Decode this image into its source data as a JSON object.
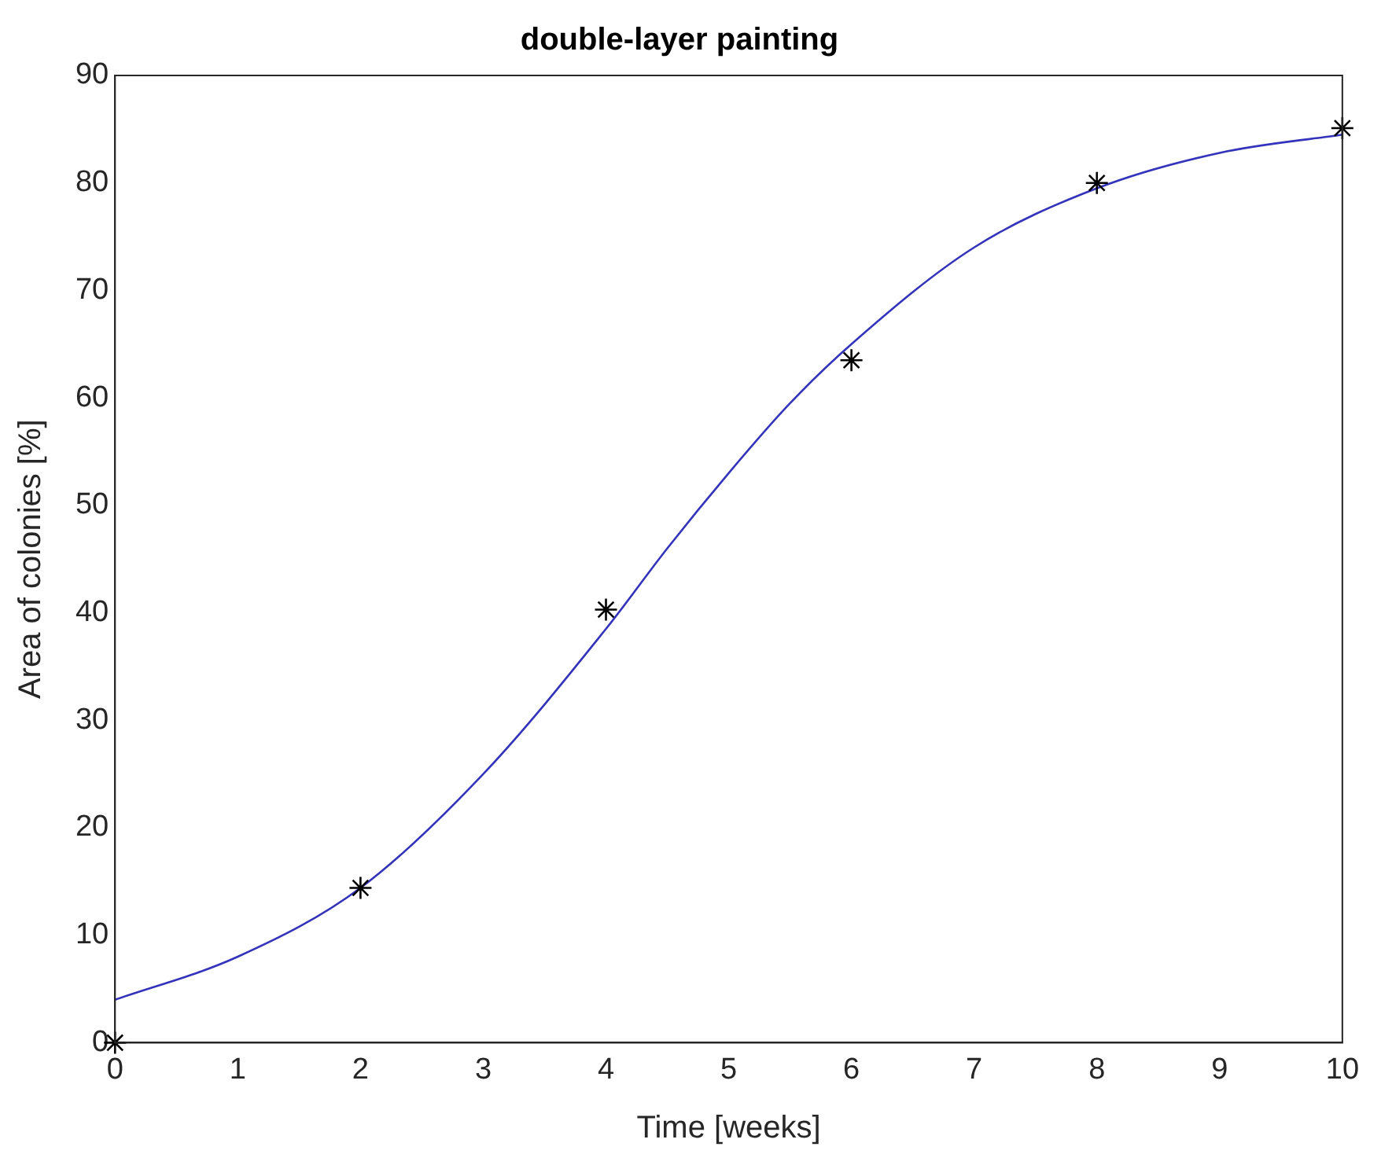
{
  "chart_data": {
    "type": "scatter",
    "title": "double-layer painting",
    "xlabel": "Time [weeks]",
    "ylabel": "Area of colonies [%]",
    "xlim": [
      0,
      10
    ],
    "xticks": [
      0,
      1,
      2,
      3,
      4,
      5,
      6,
      7,
      8,
      9,
      10
    ],
    "ylim": [
      0,
      90
    ],
    "yticks": [
      0,
      10,
      20,
      30,
      40,
      50,
      60,
      70,
      80,
      90
    ],
    "grid": false,
    "legend": false,
    "series": [
      {
        "color": "#000000",
        "marker": "cross",
        "x": [
          0,
          2,
          4,
          6,
          8,
          10
        ],
        "values": [
          0,
          14.4,
          40.3,
          63.5,
          80,
          85.1
        ]
      },
      {
        "type": "line",
        "color": "#3333bb",
        "marker": "none",
        "line_style": "solid",
        "x": [
          0,
          1,
          2,
          3,
          4,
          4.5,
          5,
          5.5,
          6,
          7,
          8,
          9,
          10
        ],
        "values": [
          4,
          8,
          14.4,
          25,
          38.5,
          46,
          53,
          59.5,
          65,
          74,
          79.5,
          82.8,
          84.5
        ]
      }
    ]
  }
}
